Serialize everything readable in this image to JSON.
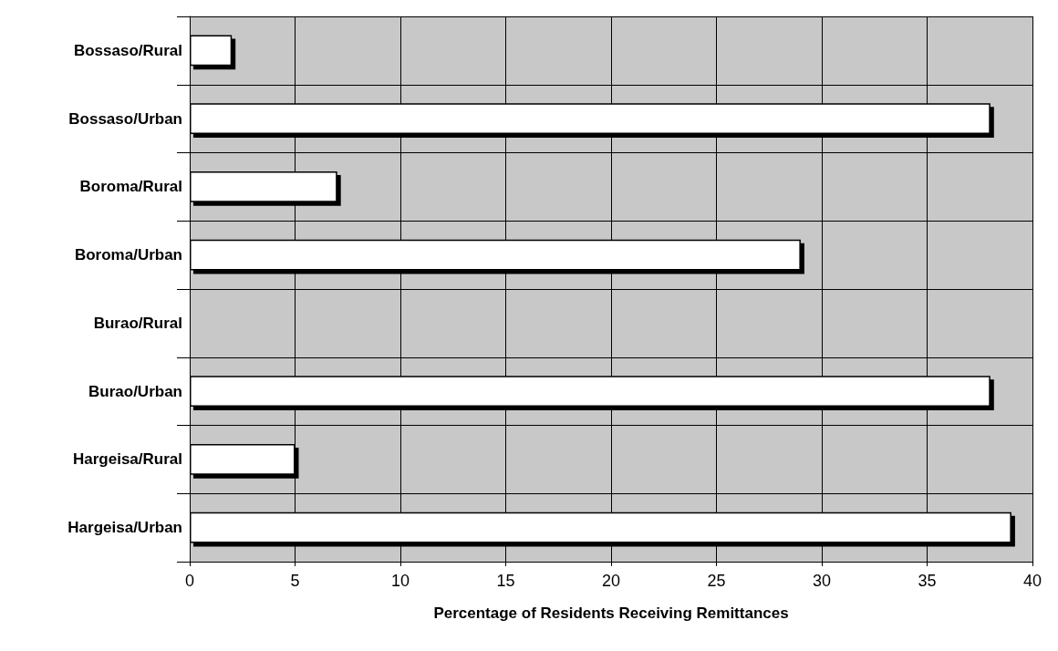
{
  "chart_data": {
    "type": "bar",
    "orientation": "horizontal",
    "xlabel": "Percentage of Residents Receiving Remittances",
    "categories": [
      "Bossaso/Rural",
      "Bossaso/Urban",
      "Boroma/Rural",
      "Boroma/Urban",
      "Burao/Rural",
      "Burao/Urban",
      "Hargeisa/Rural",
      "Hargeisa/Urban"
    ],
    "values": [
      2,
      38,
      7,
      29,
      0,
      38,
      5,
      39
    ],
    "color": "#ffffff",
    "xlim": [
      0,
      40
    ],
    "xticks": [
      0,
      5,
      10,
      15,
      20,
      25,
      30,
      35,
      40
    ],
    "grid": true
  }
}
